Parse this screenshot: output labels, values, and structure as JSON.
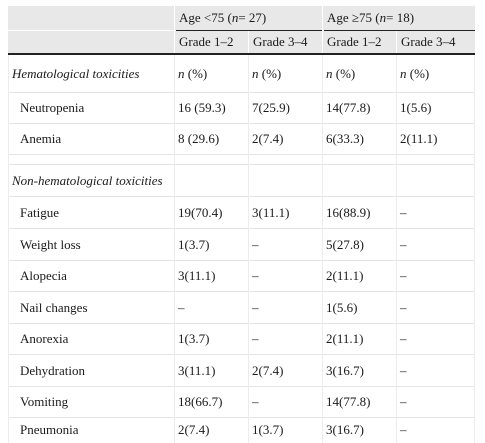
{
  "table": {
    "header": {
      "group_under75_prefix": "Age <75 (",
      "group_under75_n": "n",
      "group_under75_suffix": " = 27)",
      "group_over75_prefix": "Age ≥75 (",
      "group_over75_n": "n",
      "group_over75_suffix": " = 18)",
      "col_labels": [
        "Grade 1–2",
        "Grade 3–4",
        "Grade 1–2",
        "Grade 3–4"
      ]
    },
    "hematological": {
      "label": "Hematological toxicities",
      "units": [
        "n (%)",
        "n (%)",
        "n (%)",
        "n (%)"
      ],
      "rows": [
        {
          "name": "Neutropenia",
          "values": [
            "16 (59.3)",
            "7(25.9)",
            "14(77.8)",
            "1(5.6)"
          ]
        },
        {
          "name": "Anemia",
          "values": [
            "8 (29.6)",
            "2(7.4)",
            "6(33.3)",
            "2(11.1)"
          ]
        }
      ]
    },
    "non_hematological": {
      "label": "Non-hematological toxicities",
      "rows": [
        {
          "name": "Fatigue",
          "values": [
            "19(70.4)",
            "3(11.1)",
            "16(88.9)",
            "–"
          ]
        },
        {
          "name": "Weight loss",
          "values": [
            "1(3.7)",
            "–",
            "5(27.8)",
            "–"
          ]
        },
        {
          "name": "Alopecia",
          "values": [
            "3(11.1)",
            "–",
            "2(11.1)",
            "–"
          ]
        },
        {
          "name": "Nail changes",
          "values": [
            "–",
            "–",
            "1(5.6)",
            "–"
          ]
        },
        {
          "name": "Anorexia",
          "values": [
            "1(3.7)",
            "–",
            "2(11.1)",
            "–"
          ]
        },
        {
          "name": "Dehydration",
          "values": [
            "3(11.1)",
            "2(7.4)",
            "3(16.7)",
            "–"
          ]
        },
        {
          "name": "Vomiting",
          "values": [
            "18(66.7)",
            "–",
            "14(77.8)",
            "–"
          ]
        },
        {
          "name": "Pneumonia",
          "values": [
            "2(7.4)",
            "1(3.7)",
            "3(16.7)",
            "–"
          ]
        }
      ]
    }
  }
}
